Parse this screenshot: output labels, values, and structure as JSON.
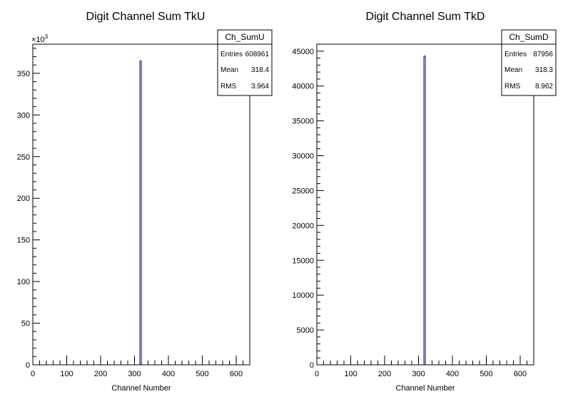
{
  "chart_data": [
    {
      "type": "bar",
      "title": "Digit Channel Sum TkU",
      "xlabel": "Channel Number",
      "ylabel": "",
      "xlim": [
        0,
        640
      ],
      "ylim": [
        0,
        385000
      ],
      "y_multiplier_label": "×10",
      "y_multiplier_exponent": "3",
      "y_scale_divisor": 1000,
      "xticks": [
        0,
        100,
        200,
        300,
        400,
        500,
        600
      ],
      "yticks": [
        0,
        50000,
        100000,
        150000,
        200000,
        250000,
        300000,
        350000
      ],
      "bins": [
        {
          "x": 318,
          "value": 365000
        }
      ],
      "bar_color": "#000066",
      "stats": {
        "name": "Ch_SumU",
        "rows": [
          {
            "label": "Entries",
            "value": "608961"
          },
          {
            "label": "Mean",
            "value": "318.4"
          },
          {
            "label": "RMS",
            "value": "3.964"
          }
        ]
      }
    },
    {
      "type": "bar",
      "title": "Digit Channel Sum TkD",
      "xlabel": "Channel Number",
      "ylabel": "",
      "xlim": [
        0,
        640
      ],
      "ylim": [
        0,
        46000
      ],
      "xticks": [
        0,
        100,
        200,
        300,
        400,
        500,
        600
      ],
      "yticks": [
        0,
        5000,
        10000,
        15000,
        20000,
        25000,
        30000,
        35000,
        40000,
        45000
      ],
      "bins": [
        {
          "x": 318,
          "value": 44300
        }
      ],
      "bar_color": "#000066",
      "stats": {
        "name": "Ch_SumD",
        "rows": [
          {
            "label": "Entries",
            "value": "87956"
          },
          {
            "label": "Mean",
            "value": "318.3"
          },
          {
            "label": "RMS",
            "value": "8.962"
          }
        ]
      }
    }
  ]
}
